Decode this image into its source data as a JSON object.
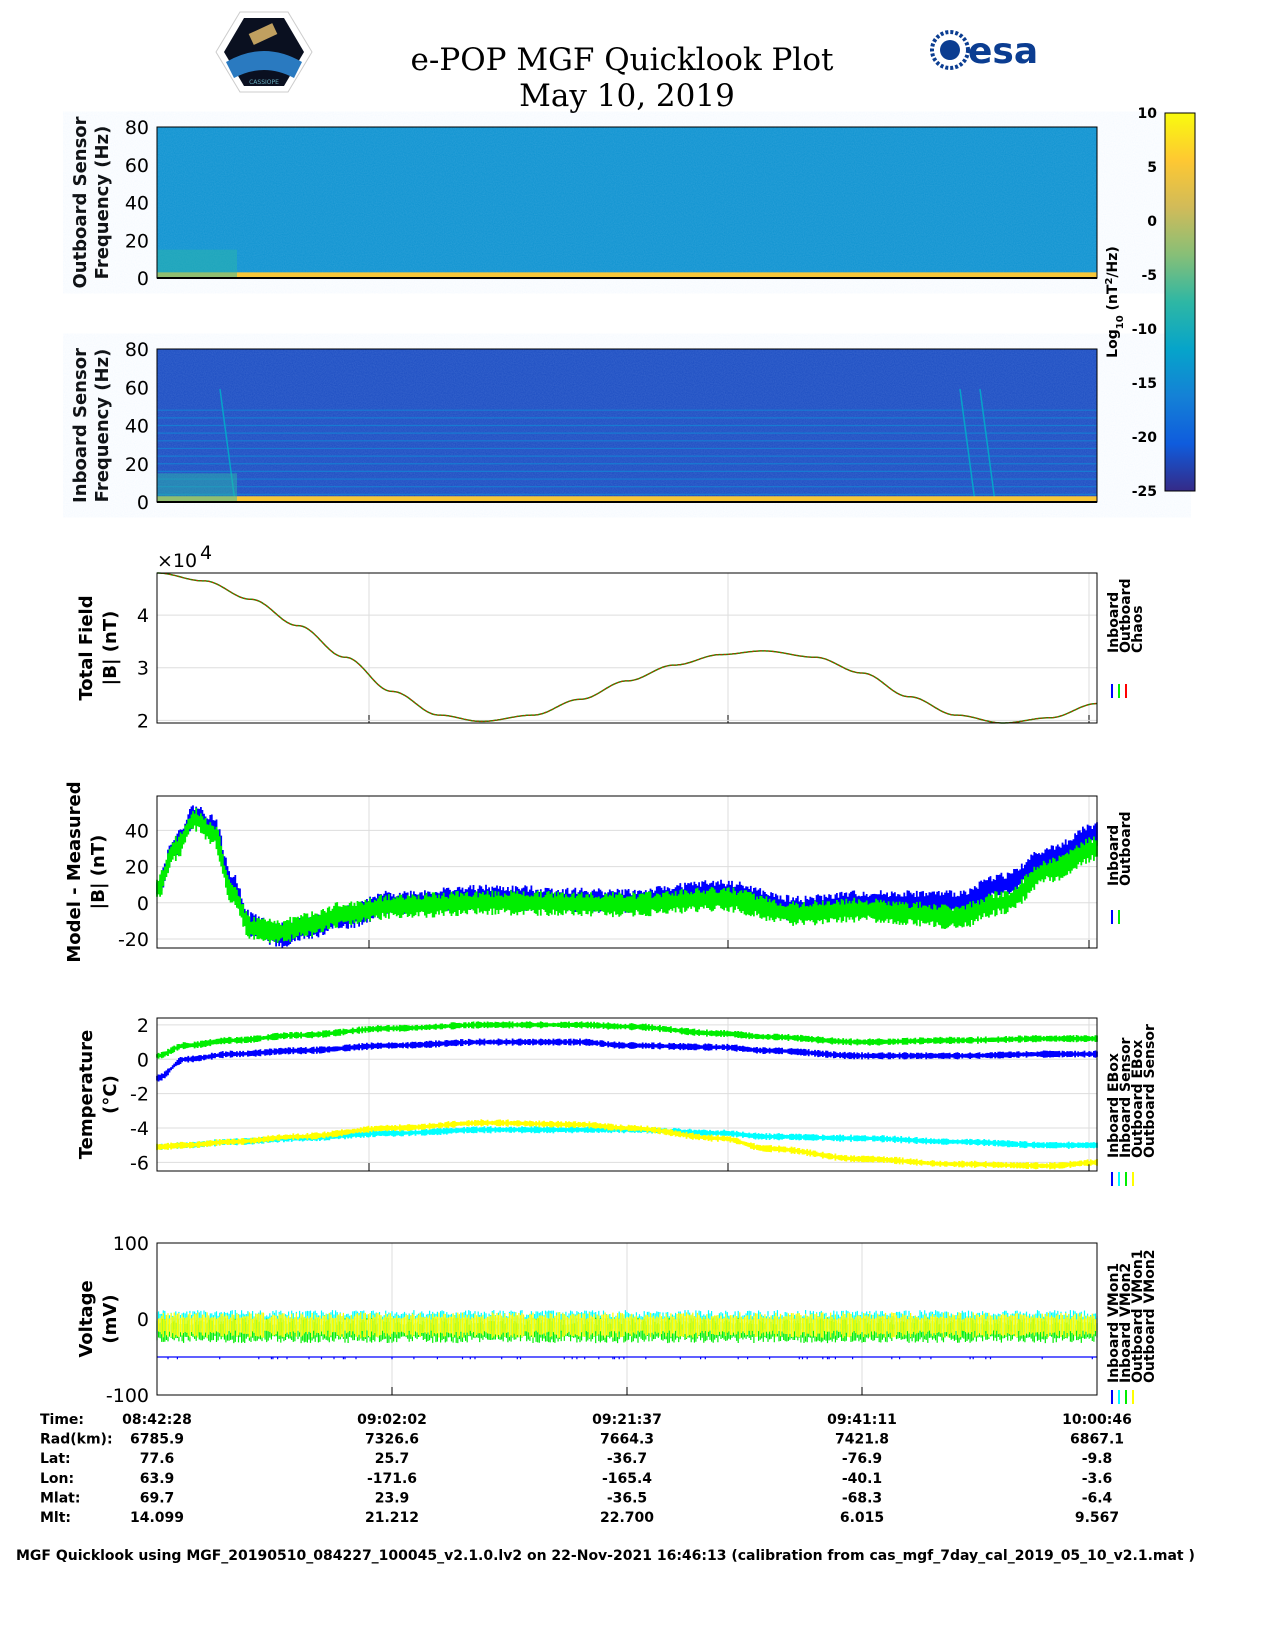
{
  "header": {
    "title": "e-POP MGF Quicklook Plot",
    "date": "May 10, 2019",
    "left_logo": "CASSIOPE",
    "right_logo": "esa"
  },
  "colorbar": {
    "label": "Log10 (nT^2/Hz)",
    "label_main": "Log",
    "label_sub": "10",
    "label_rest": " (nT",
    "label_sup": "2",
    "label_end": "/Hz)",
    "range": [
      -25,
      10
    ],
    "ticks": [
      "10",
      "5",
      "0",
      "-5",
      "-10",
      "-15",
      "-20",
      "-25"
    ],
    "colors": [
      "#352a87",
      "#0f5cdd",
      "#1481d6",
      "#06a4ca",
      "#2eb7a4",
      "#87bf77",
      "#d1bb59",
      "#fec832",
      "#f9fb0e"
    ]
  },
  "chart_data": [
    {
      "type": "heatmap",
      "name": "outboard-spectrogram",
      "ylabel": [
        "Outboard Sensor",
        "Frequency (Hz)"
      ],
      "ylim": [
        0,
        80
      ],
      "yticks": [
        "80",
        "60",
        "40",
        "20",
        "0"
      ],
      "background_level": -14,
      "low_frequency_level": 5
    },
    {
      "type": "heatmap",
      "name": "inboard-spectrogram",
      "ylabel": [
        "Inboard Sensor",
        "Frequency (Hz)"
      ],
      "ylim": [
        0,
        80
      ],
      "yticks": [
        "80",
        "60",
        "40",
        "20",
        "0"
      ],
      "background_level": -22,
      "line_frequencies": [
        4,
        8,
        12,
        16,
        20,
        24,
        28,
        32,
        36,
        40,
        44,
        48
      ],
      "line_level": -16
    },
    {
      "type": "line",
      "name": "total-field",
      "ylabel": [
        "Total Field",
        "|B| (nT)"
      ],
      "exponent_label": "×10",
      "exponent": "4",
      "ylim": [
        1.95,
        4.8
      ],
      "yticks": [
        "4",
        "3",
        "2"
      ],
      "legend": [
        "Inboard",
        "Outboard",
        "Chaos"
      ],
      "legend_colors": [
        "#0000ff",
        "#00ee00",
        "#ff0000"
      ],
      "x": [
        0,
        0.05,
        0.1,
        0.15,
        0.2,
        0.25,
        0.3,
        0.345,
        0.4,
        0.45,
        0.5,
        0.55,
        0.6,
        0.645,
        0.7,
        0.75,
        0.8,
        0.85,
        0.9,
        0.95,
        1.0
      ],
      "values": [
        4.8,
        4.65,
        4.3,
        3.8,
        3.2,
        2.55,
        2.1,
        1.98,
        2.1,
        2.4,
        2.75,
        3.05,
        3.25,
        3.32,
        3.2,
        2.9,
        2.45,
        2.1,
        1.95,
        2.05,
        2.32
      ]
    },
    {
      "type": "line",
      "name": "model-minus-measured",
      "ylabel": [
        "Model - Measured",
        "|B| (nT)"
      ],
      "ylim": [
        -25,
        59
      ],
      "yticks": [
        "40",
        "20",
        "0",
        "-20"
      ],
      "legend": [
        "Inboard",
        "Outboard"
      ],
      "legend_colors": [
        "#0000ff",
        "#00ee00"
      ],
      "x": [
        0,
        0.02,
        0.04,
        0.06,
        0.08,
        0.1,
        0.13,
        0.16,
        0.2,
        0.25,
        0.35,
        0.5,
        0.6,
        0.68,
        0.75,
        0.8,
        0.85,
        0.9,
        0.95,
        1.0
      ],
      "series": [
        {
          "name": "Inboard",
          "values": [
            8,
            32,
            48,
            42,
            10,
            -12,
            -18,
            -14,
            -8,
            0,
            3,
            1,
            6,
            -3,
            0,
            0,
            0,
            10,
            25,
            38
          ]
        },
        {
          "name": "Outboard",
          "values": [
            8,
            30,
            46,
            38,
            5,
            -14,
            -16,
            -12,
            -6,
            -2,
            0,
            -1,
            2,
            -6,
            -4,
            -6,
            -8,
            0,
            18,
            30
          ]
        }
      ],
      "band_halfwidth": 5
    },
    {
      "type": "line",
      "name": "temperature",
      "ylabel": [
        "Temperature",
        "(°C)"
      ],
      "ylim": [
        -6.5,
        2.4
      ],
      "yticks": [
        "2",
        "0",
        "-2",
        "-4",
        "-6"
      ],
      "legend": [
        "Inboard EBox",
        "Inboard Sensor",
        "Outboard EBox",
        "Outboard Sensor"
      ],
      "legend_colors": [
        "#0000ff",
        "#00ffff",
        "#00ee00",
        "#ffff00"
      ],
      "x": [
        0,
        0.03,
        0.08,
        0.15,
        0.25,
        0.35,
        0.45,
        0.5,
        0.6,
        0.65,
        0.75,
        0.85,
        0.95,
        1.0
      ],
      "series": [
        {
          "name": "Inboard EBox",
          "values": [
            -1.1,
            0,
            0.3,
            0.5,
            0.8,
            1.0,
            1.0,
            0.8,
            0.7,
            0.5,
            0.2,
            0.2,
            0.3,
            0.3
          ]
        },
        {
          "name": "Inboard Sensor",
          "values": [
            -5.1,
            -5.0,
            -4.8,
            -4.6,
            -4.3,
            -4.1,
            -4.1,
            -4.1,
            -4.3,
            -4.5,
            -4.6,
            -4.8,
            -5.0,
            -5.0
          ]
        },
        {
          "name": "Outboard EBox",
          "values": [
            0.2,
            0.8,
            1.1,
            1.4,
            1.8,
            2.0,
            2.0,
            1.9,
            1.5,
            1.3,
            1.0,
            1.1,
            1.2,
            1.2
          ]
        },
        {
          "name": "Outboard Sensor",
          "values": [
            -5.1,
            -5.0,
            -4.8,
            -4.5,
            -4.0,
            -3.7,
            -3.8,
            -4.0,
            -4.6,
            -5.2,
            -5.8,
            -6.1,
            -6.2,
            -6.0
          ]
        }
      ]
    },
    {
      "type": "line",
      "name": "voltage",
      "ylabel": [
        "Voltage",
        "(mV)"
      ],
      "ylim": [
        -100,
        100
      ],
      "yticks": [
        "100",
        "0",
        "-100"
      ],
      "legend": [
        "Inboard VMon1",
        "Inboard VMon2",
        "Outboard VMon1",
        "Outboard VMon2"
      ],
      "legend_colors": [
        "#0000ff",
        "#00ffff",
        "#00ee00",
        "#ffff00"
      ],
      "series": [
        {
          "name": "Inboard VMon1",
          "values": [
            -50,
            -50
          ]
        },
        {
          "name": "Inboard VMon2",
          "values": [
            -5,
            -5
          ]
        },
        {
          "name": "Outboard VMon1",
          "values": [
            -15,
            -15
          ]
        },
        {
          "name": "Outboard VMon2",
          "values": [
            -8,
            -8
          ]
        }
      ]
    }
  ],
  "info_table": {
    "row_labels": [
      "Time:",
      "Rad(km):",
      "Lat:",
      "Lon:",
      "Mlat:",
      "Mlt:"
    ],
    "columns": [
      [
        "08:42:28",
        "6785.9",
        "77.6",
        "63.9",
        "69.7",
        "14.099"
      ],
      [
        "09:02:02",
        "7326.6",
        "25.7",
        "-171.6",
        "23.9",
        "21.212"
      ],
      [
        "09:21:37",
        "7664.3",
        "-36.7",
        "-165.4",
        "-36.5",
        "22.700"
      ],
      [
        "09:41:11",
        "7421.8",
        "-76.9",
        "-40.1",
        "-68.3",
        "6.015"
      ],
      [
        "10:00:46",
        "6867.1",
        "-9.8",
        "-3.6",
        "-6.4",
        "9.567"
      ]
    ]
  },
  "footer": "MGF Quicklook using MGF_20190510_084227_100045_v2.1.0.lv2 on 22-Nov-2021 16:46:13 (calibration from cas_mgf_7day_cal_2019_05_10_v2.1.mat )"
}
